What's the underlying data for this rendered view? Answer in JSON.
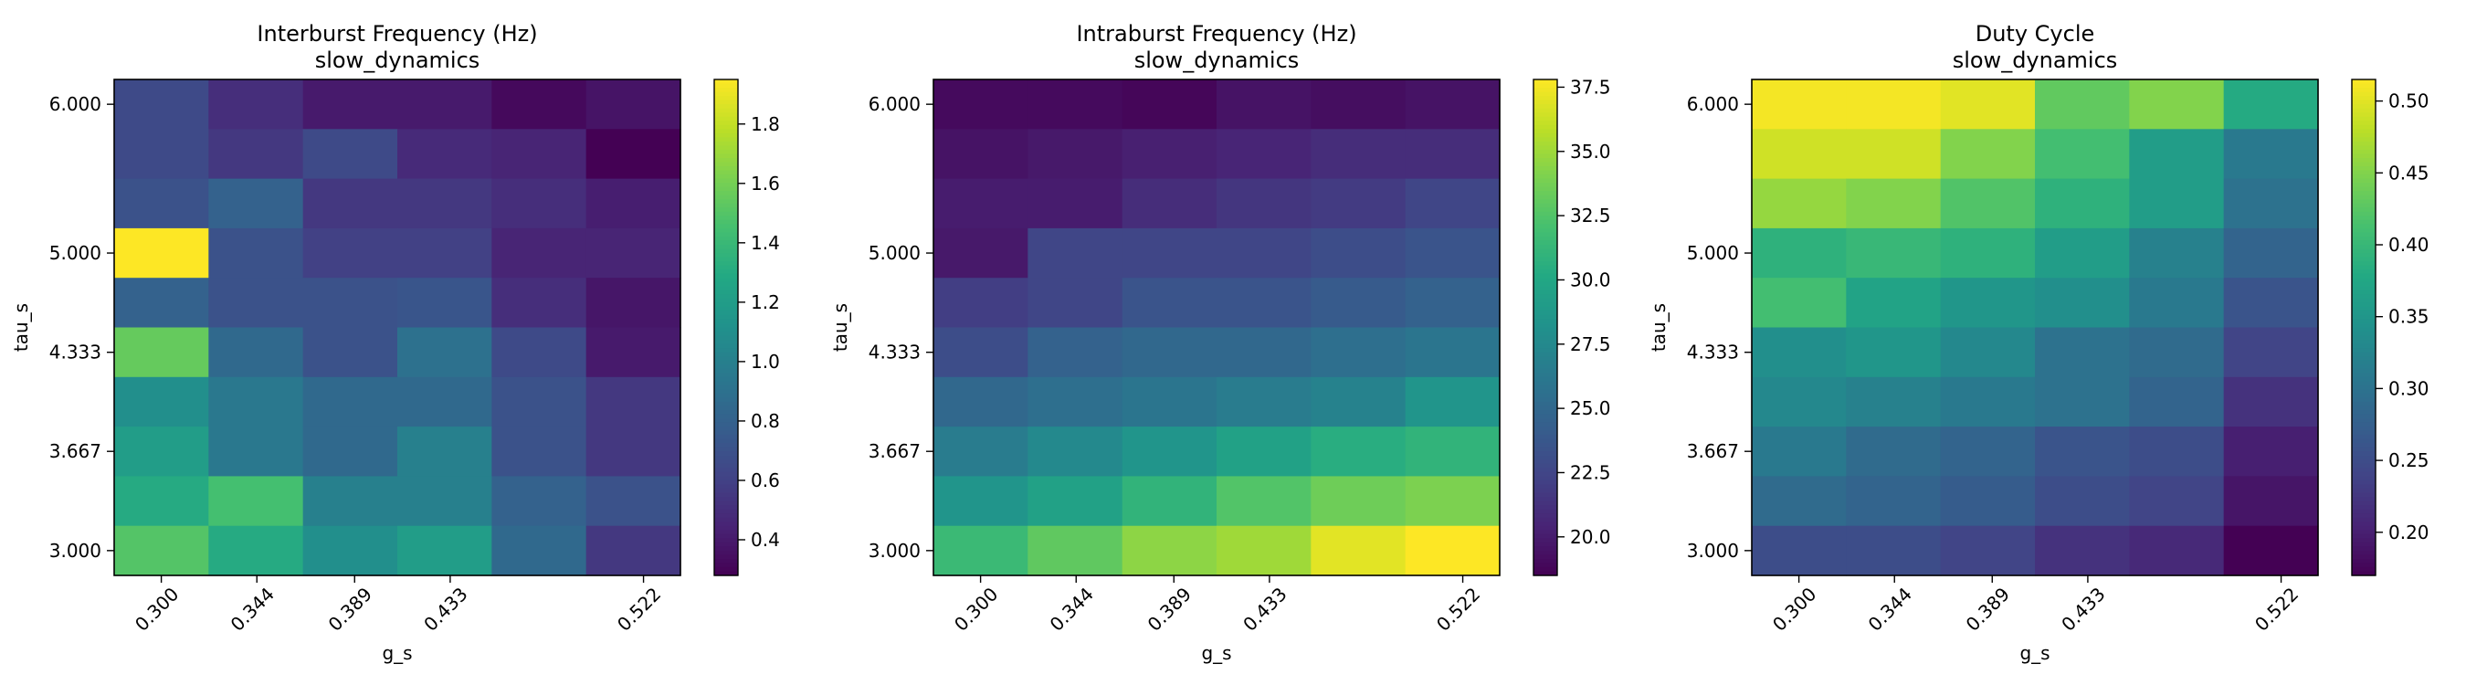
{
  "chart_data": [
    {
      "type": "heatmap",
      "title": "Interburst Frequency (Hz)",
      "subtitle": "slow_dynamics",
      "xlabel": "g_s",
      "ylabel": "tau_s",
      "x_ticks": [
        "0.300",
        "0.344",
        "0.389",
        "0.433",
        "0.522"
      ],
      "y_ticks": [
        "3.000",
        "3.667",
        "4.333",
        "5.000",
        "6.000"
      ],
      "colormap": "viridis",
      "vmin": 0.28,
      "vmax": 1.95,
      "colorbar_ticks": [
        "0.4",
        "0.6",
        "0.8",
        "1.0",
        "1.2",
        "1.4",
        "1.6",
        "1.8"
      ],
      "z": [
        [
          0.65,
          0.5,
          0.4,
          0.4,
          0.32,
          0.37
        ],
        [
          0.65,
          0.55,
          0.65,
          0.48,
          0.45,
          0.28
        ],
        [
          0.7,
          0.8,
          0.55,
          0.55,
          0.5,
          0.42
        ],
        [
          1.95,
          0.7,
          0.6,
          0.6,
          0.45,
          0.45
        ],
        [
          0.8,
          0.7,
          0.7,
          0.72,
          0.5,
          0.38
        ],
        [
          1.55,
          0.85,
          0.7,
          0.9,
          0.65,
          0.4
        ],
        [
          1.1,
          0.95,
          0.85,
          0.85,
          0.7,
          0.55
        ],
        [
          1.2,
          0.95,
          0.85,
          1.0,
          0.7,
          0.55
        ],
        [
          1.3,
          1.45,
          1.0,
          1.0,
          0.8,
          0.7
        ],
        [
          1.5,
          1.3,
          1.1,
          1.2,
          0.85,
          0.55
        ]
      ]
    },
    {
      "type": "heatmap",
      "title": "Intraburst Frequency (Hz)",
      "subtitle": "slow_dynamics",
      "xlabel": "g_s",
      "ylabel": "tau_s",
      "x_ticks": [
        "0.300",
        "0.344",
        "0.389",
        "0.433",
        "0.522"
      ],
      "y_ticks": [
        "3.000",
        "3.667",
        "4.333",
        "5.000",
        "6.000"
      ],
      "colormap": "viridis",
      "vmin": 18.5,
      "vmax": 37.8,
      "colorbar_ticks": [
        "20.0",
        "22.5",
        "25.0",
        "27.5",
        "30.0",
        "32.5",
        "35.0",
        "37.5"
      ],
      "z": [
        [
          19.0,
          19.0,
          18.8,
          19.5,
          19.2,
          19.5
        ],
        [
          19.5,
          19.8,
          20.2,
          20.5,
          21.0,
          21.0
        ],
        [
          20.0,
          20.0,
          21.0,
          21.5,
          21.8,
          22.5
        ],
        [
          19.8,
          22.5,
          22.5,
          22.5,
          23.0,
          23.5
        ],
        [
          22.0,
          22.5,
          23.5,
          23.5,
          24.0,
          24.5
        ],
        [
          23.0,
          24.5,
          25.0,
          25.0,
          25.5,
          26.0
        ],
        [
          25.0,
          25.5,
          26.0,
          26.5,
          27.0,
          28.5
        ],
        [
          26.5,
          27.5,
          28.5,
          29.5,
          30.5,
          31.0
        ],
        [
          28.5,
          29.5,
          31.0,
          32.5,
          33.5,
          34.0
        ],
        [
          31.5,
          33.0,
          34.5,
          35.0,
          37.0,
          37.8
        ]
      ]
    },
    {
      "type": "heatmap",
      "title": "Duty Cycle",
      "subtitle": "slow_dynamics",
      "xlabel": "g_s",
      "ylabel": "tau_s",
      "x_ticks": [
        "0.300",
        "0.344",
        "0.389",
        "0.433",
        "0.522"
      ],
      "y_ticks": [
        "3.000",
        "3.667",
        "4.333",
        "5.000",
        "6.000"
      ],
      "colormap": "viridis",
      "vmin": 0.17,
      "vmax": 0.515,
      "colorbar_ticks": [
        "0.20",
        "0.25",
        "0.30",
        "0.35",
        "0.40",
        "0.45",
        "0.50"
      ],
      "z": [
        [
          0.51,
          0.51,
          0.5,
          0.43,
          0.45,
          0.38
        ],
        [
          0.49,
          0.49,
          0.45,
          0.41,
          0.36,
          0.31
        ],
        [
          0.46,
          0.45,
          0.42,
          0.39,
          0.36,
          0.3
        ],
        [
          0.39,
          0.4,
          0.39,
          0.36,
          0.32,
          0.28
        ],
        [
          0.41,
          0.37,
          0.35,
          0.34,
          0.31,
          0.26
        ],
        [
          0.34,
          0.35,
          0.33,
          0.3,
          0.29,
          0.24
        ],
        [
          0.33,
          0.32,
          0.31,
          0.3,
          0.28,
          0.22
        ],
        [
          0.31,
          0.29,
          0.28,
          0.26,
          0.25,
          0.2
        ],
        [
          0.29,
          0.28,
          0.27,
          0.25,
          0.24,
          0.19
        ],
        [
          0.25,
          0.25,
          0.24,
          0.22,
          0.21,
          0.17
        ]
      ]
    }
  ]
}
